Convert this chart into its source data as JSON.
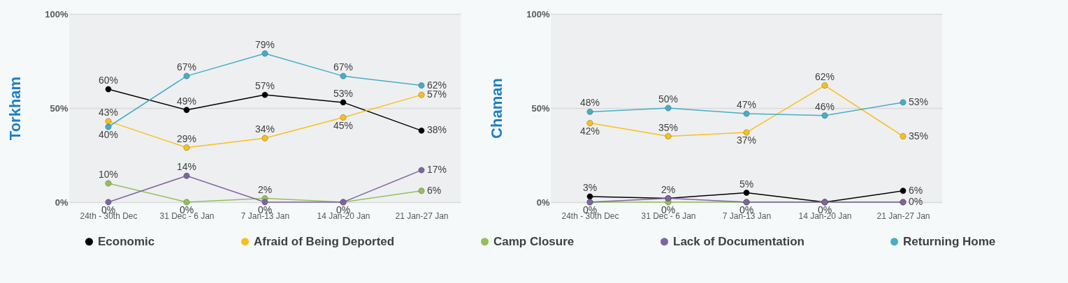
{
  "chart_data": [
    {
      "type": "line",
      "ylabel": "Torkham",
      "categories": [
        "24th - 30th Dec",
        "31 Dec - 6 Jan",
        "7 Jan-13 Jan",
        "14 Jan-20 Jan",
        "21 Jan-27 Jan"
      ],
      "ylim": [
        0,
        100
      ],
      "yticks": [
        {
          "value": 0,
          "label": "0%"
        },
        {
          "value": 50,
          "label": "50%"
        },
        {
          "value": 100,
          "label": "100%"
        }
      ],
      "grid": "y",
      "legend": "bottom",
      "marker": "circle",
      "series": [
        {
          "name": "Economic",
          "color": "#000000",
          "values": [
            60,
            49,
            57,
            53,
            38
          ],
          "value_labels": [
            "60%",
            "49%",
            "57%",
            "53%",
            "38%"
          ]
        },
        {
          "name": "Afraid of Being Deported",
          "color": "#f9c01b",
          "values": [
            43,
            29,
            34,
            45,
            57
          ],
          "value_labels": [
            "43%",
            "29%",
            "34%",
            "45%",
            "57%"
          ]
        },
        {
          "name": "Camp Closure",
          "color": "#92c05a",
          "values": [
            10,
            0,
            2,
            0,
            6
          ],
          "value_labels": [
            "10%",
            "0%",
            "2%",
            null,
            "6%"
          ]
        },
        {
          "name": "Lack of Documentation",
          "color": "#8064a2",
          "values": [
            0,
            14,
            0,
            0,
            17
          ],
          "value_labels": [
            "0%",
            "14%",
            "0%",
            "0%",
            "17%"
          ]
        },
        {
          "name": "Returning Home",
          "color": "#45aec6",
          "values": [
            40,
            67,
            79,
            67,
            62
          ],
          "value_labels": [
            "40%",
            "67%",
            "79%",
            "67%",
            "62%"
          ]
        }
      ]
    },
    {
      "type": "line",
      "ylabel": "Chaman",
      "categories": [
        "24th - 30th Dec",
        "31 Dec - 6 Jan",
        "7 Jan-13 Jan",
        "14 Jan-20 Jan",
        "21 Jan-27 Jan"
      ],
      "ylim": [
        0,
        100
      ],
      "yticks": [
        {
          "value": 0,
          "label": "0%"
        },
        {
          "value": 50,
          "label": "50%"
        },
        {
          "value": 100,
          "label": "100%"
        }
      ],
      "grid": "y",
      "legend": "bottom",
      "marker": "circle",
      "series": [
        {
          "name": "Economic",
          "color": "#000000",
          "values": [
            3,
            2,
            5,
            0,
            6
          ],
          "value_labels": [
            "3%",
            "2%",
            "5%",
            null,
            "6%"
          ]
        },
        {
          "name": "Afraid of Being Deported",
          "color": "#f9c01b",
          "values": [
            42,
            35,
            37,
            62,
            35
          ],
          "value_labels": [
            "42%",
            "35%",
            "37%",
            "62%",
            "35%"
          ]
        },
        {
          "name": "Camp Closure",
          "color": "#92c05a",
          "values": [
            0,
            0,
            0,
            0,
            0
          ],
          "value_labels": [
            "0%",
            "0%",
            "0%",
            "0%",
            "0%"
          ]
        },
        {
          "name": "Lack of Documentation",
          "color": "#8064a2",
          "values": [
            0,
            2,
            0,
            0,
            0
          ],
          "value_labels": [
            null,
            null,
            null,
            null,
            null
          ]
        },
        {
          "name": "Returning Home",
          "color": "#45aec6",
          "values": [
            48,
            50,
            47,
            46,
            53
          ],
          "value_labels": [
            "48%",
            "50%",
            "47%",
            "46%",
            "53%"
          ]
        }
      ]
    }
  ]
}
